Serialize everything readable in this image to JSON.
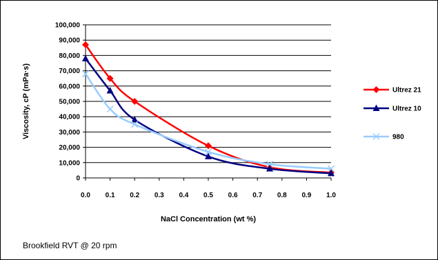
{
  "chart_data": {
    "type": "line",
    "xlabel": "NaCl Concentration (wt %)",
    "ylabel": "Viscosity, cP (mPa·s)",
    "xlim": [
      0,
      1
    ],
    "ylim": [
      0,
      100000
    ],
    "x_ticks": [
      "0.0",
      "0.1",
      "0.2",
      "0.3",
      "0.4",
      "0.5",
      "0.6",
      "0.7",
      "0.8",
      "0.9",
      "1.0"
    ],
    "y_ticks": [
      "0",
      "10,000",
      "20,000",
      "30,000",
      "40,000",
      "50,000",
      "60,000",
      "70,000",
      "80,000",
      "90,000",
      "100,000"
    ],
    "grid": "horizontal major gridlines",
    "legend_position": "right",
    "series": [
      {
        "name": "Ultrez 21",
        "color": "#ff0000",
        "marker": "diamond",
        "x": [
          0,
          0.1,
          0.2,
          0.5,
          0.75,
          1.0
        ],
        "y": [
          87000,
          65000,
          50000,
          21000,
          7000,
          3500
        ]
      },
      {
        "name": "Ultrez 10",
        "color": "#000080",
        "marker": "triangle",
        "x": [
          0,
          0.1,
          0.2,
          0.5,
          0.75,
          1.0
        ],
        "y": [
          78000,
          57000,
          38000,
          14000,
          6000,
          3000
        ]
      },
      {
        "name": "980",
        "color": "#99ccff",
        "marker": "x",
        "x": [
          0,
          0.1,
          0.2,
          0.5,
          0.75,
          1.0
        ],
        "y": [
          68000,
          45000,
          35000,
          17000,
          9000,
          6000
        ]
      }
    ]
  },
  "footnote": "Brookfield RVT @ 20 rpm"
}
